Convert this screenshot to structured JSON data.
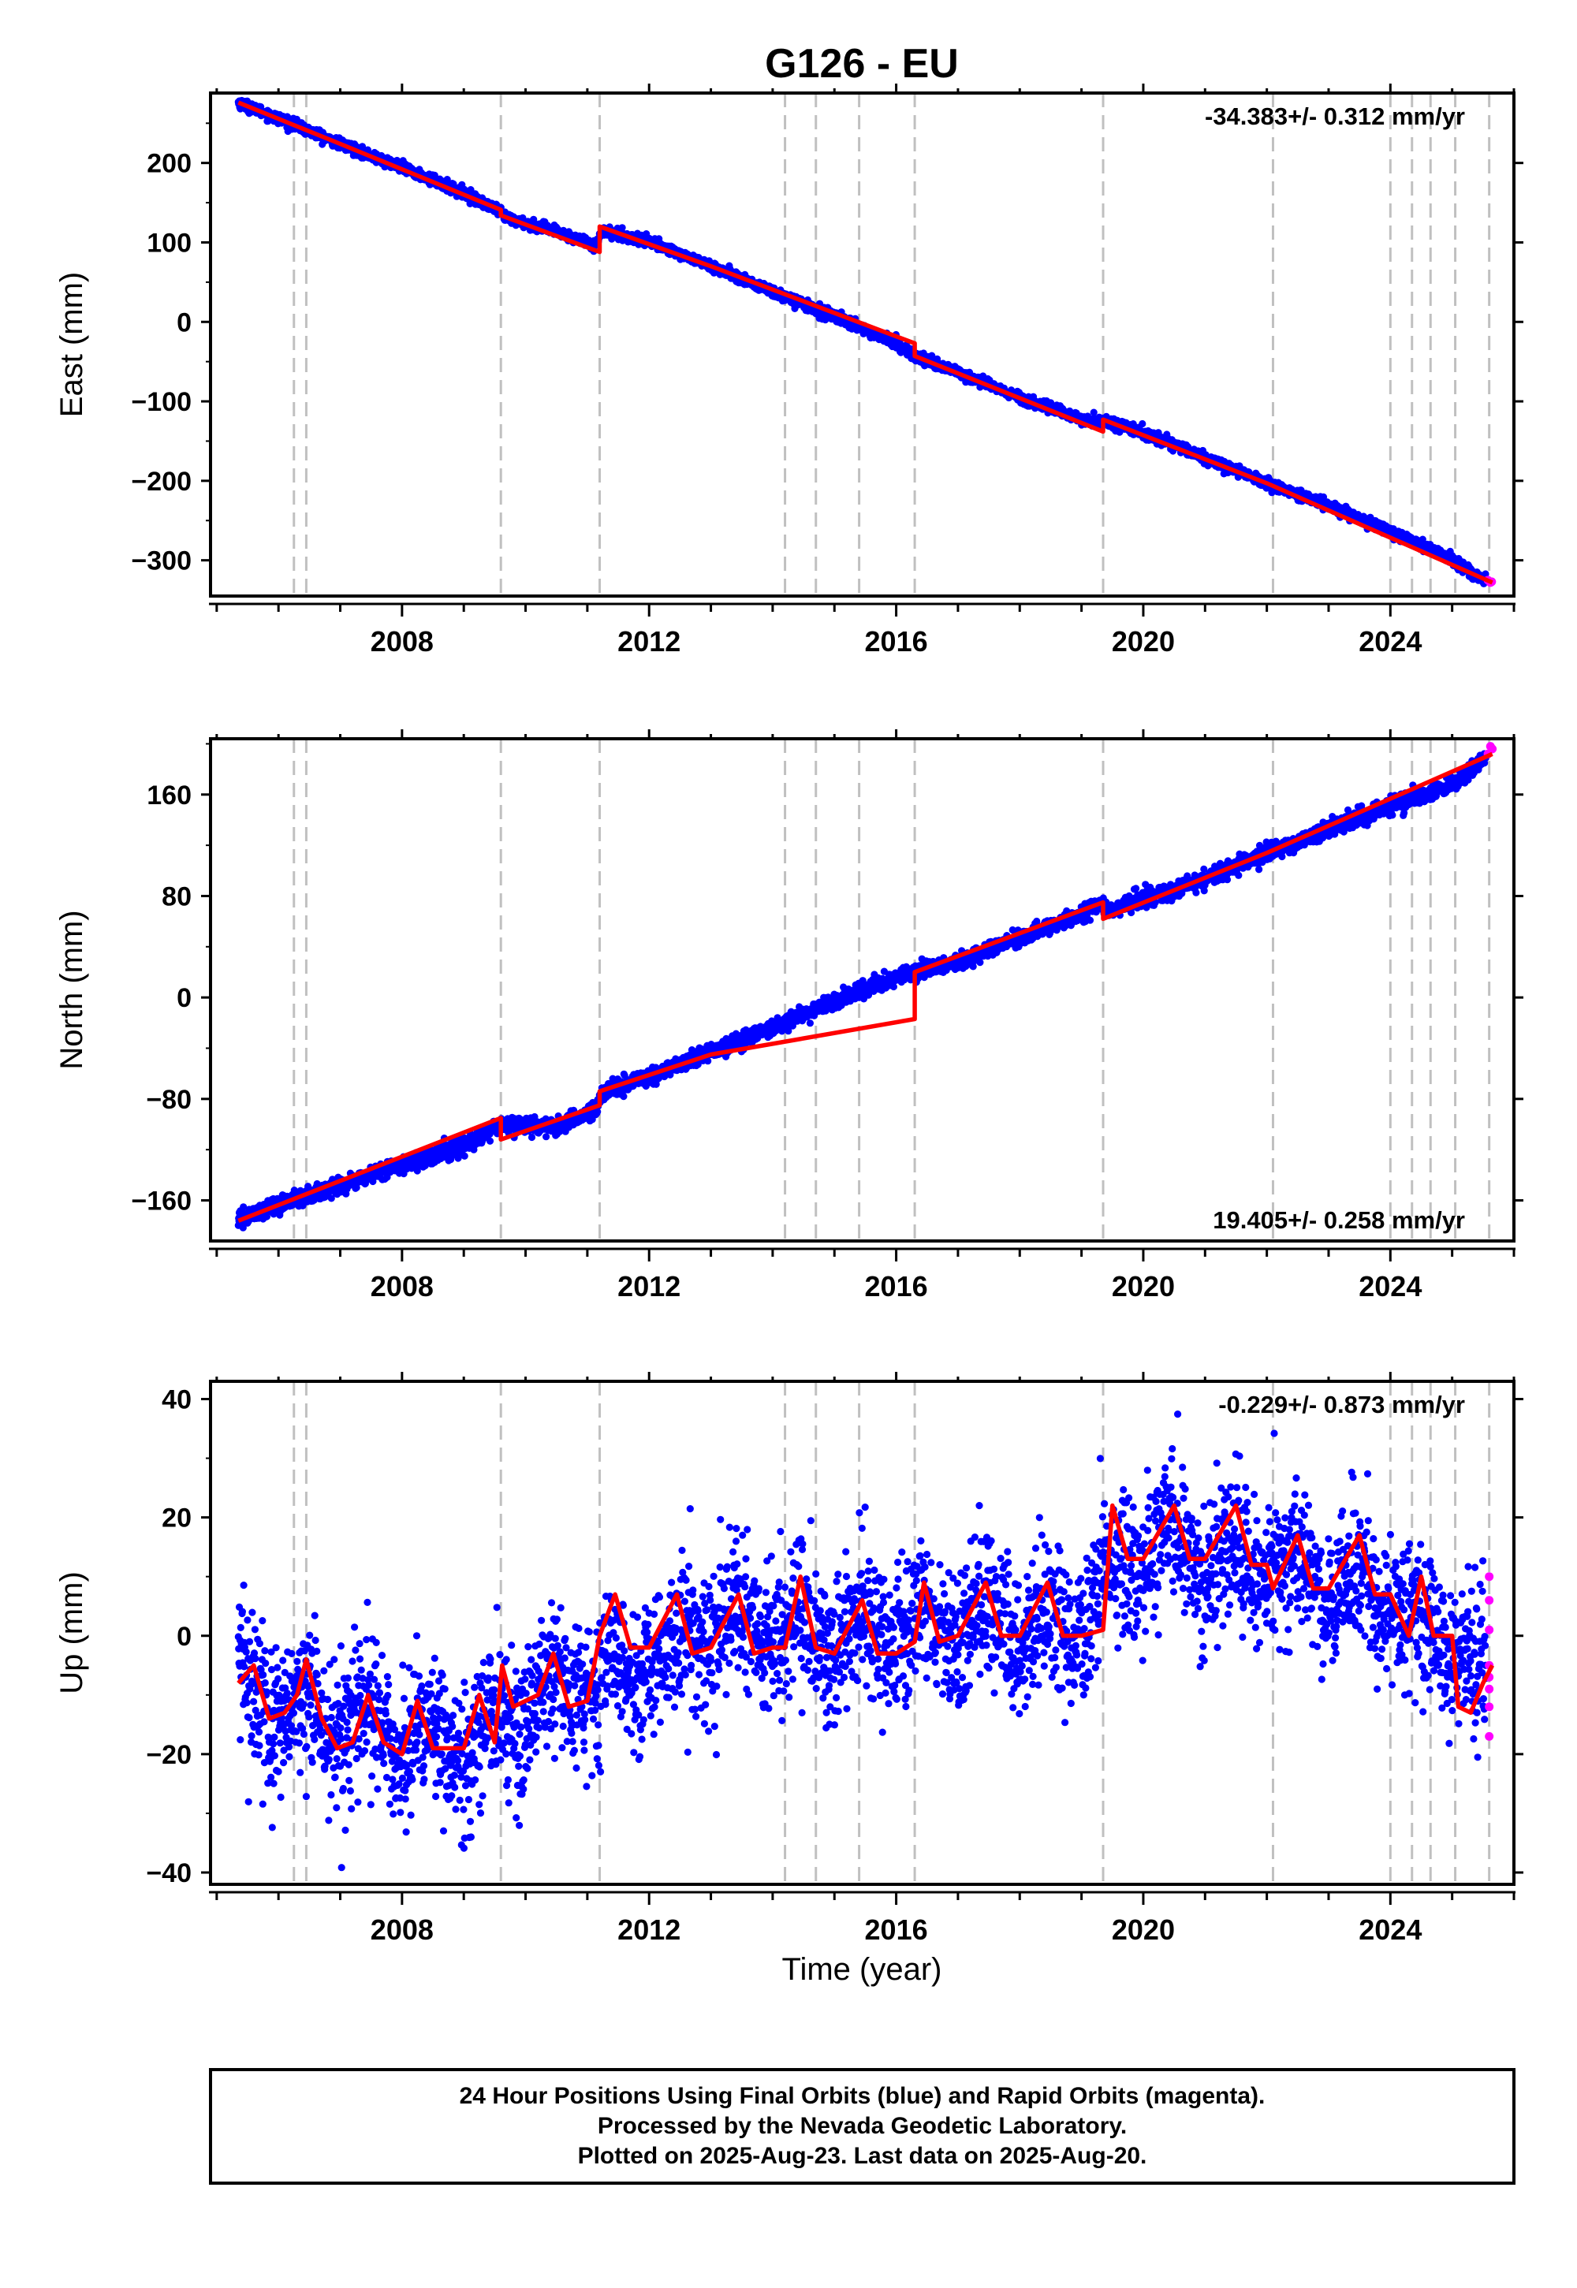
{
  "title": "G126 - EU",
  "xlabel": "Time (year)",
  "caption": {
    "line1": "24 Hour Positions Using Final Orbits (blue) and Rapid Orbits (magenta).",
    "line2": "Processed by the Nevada Geodetic Laboratory.",
    "line3": "Plotted on 2025-Aug-23. Last data on 2025-Aug-20."
  },
  "colors": {
    "final_orbits": "#0000ff",
    "rapid_orbits": "#ff00ff",
    "model": "#ff0000",
    "event_lines": "#c0c0c0"
  },
  "chart_data": [
    {
      "type": "scatter",
      "component": "east",
      "ylabel": "East (mm)",
      "rate_label": "-34.383+/- 0.312 mm/yr",
      "rate_label_position": "top-right",
      "xlim": [
        2004.9,
        2026.0
      ],
      "ylim": [
        -345,
        288
      ],
      "xticks": [
        2008,
        2012,
        2016,
        2020,
        2024
      ],
      "yticks": [
        -300,
        -200,
        -100,
        0,
        100,
        200
      ],
      "event_lines": [
        2006.25,
        2006.45,
        2009.6,
        2011.2,
        2014.2,
        2014.7,
        2015.4,
        2016.3,
        2019.35,
        2022.1,
        2024.0,
        2024.35,
        2024.65,
        2025.05,
        2025.6
      ],
      "series": [
        {
          "name": "Final Orbits",
          "x": [
            2005.35,
            2006.0,
            2007.0,
            2008.0,
            2009.0,
            2009.55,
            2009.65,
            2010.5,
            2011.15,
            2011.25,
            2012.0,
            2013.0,
            2014.0,
            2015.0,
            2016.0,
            2016.3,
            2017.0,
            2018.0,
            2019.0,
            2019.35,
            2019.4,
            2020.0,
            2021.0,
            2022.0,
            2023.0,
            2024.0,
            2025.0,
            2025.55
          ],
          "y": [
            276,
            256,
            224,
            194,
            162,
            140,
            132,
            113,
            97,
            115,
            101,
            70,
            38,
            7,
            -27,
            -43,
            -63,
            -95,
            -122,
            -128,
            -126,
            -139,
            -171,
            -203,
            -231,
            -263,
            -299,
            -327
          ]
        },
        {
          "name": "Rapid Orbits",
          "x": [
            2025.58,
            2025.62,
            2025.64
          ],
          "y": [
            -325,
            -328,
            -327
          ]
        },
        {
          "name": "Model",
          "x": [
            2005.35,
            2007.0,
            2009.6,
            2009.6,
            2011.2,
            2011.2,
            2013.0,
            2016.3,
            2016.3,
            2019.35,
            2019.35,
            2022.0,
            2025.65
          ],
          "y": [
            276,
            224,
            141,
            134,
            88,
            120,
            70,
            -27,
            -43,
            -138,
            -123,
            -203,
            -328
          ]
        }
      ]
    },
    {
      "type": "scatter",
      "component": "north",
      "ylabel": "North (mm)",
      "rate_label": "19.405+/- 0.258 mm/yr",
      "rate_label_position": "bottom-right",
      "xlim": [
        2004.9,
        2026.0
      ],
      "ylim": [
        -192,
        204
      ],
      "xticks": [
        2008,
        2012,
        2016,
        2020,
        2024
      ],
      "yticks": [
        -160,
        -80,
        0,
        80,
        160
      ],
      "event_lines": [
        2006.25,
        2006.45,
        2009.6,
        2011.2,
        2014.2,
        2014.7,
        2015.4,
        2016.3,
        2019.35,
        2022.1,
        2024.0,
        2024.35,
        2024.65,
        2025.05,
        2025.6
      ],
      "series": [
        {
          "name": "Final Orbits",
          "x": [
            2005.35,
            2006.0,
            2007.0,
            2008.0,
            2009.0,
            2009.55,
            2009.65,
            2010.5,
            2011.15,
            2011.25,
            2012.0,
            2013.0,
            2014.0,
            2015.0,
            2016.0,
            2016.3,
            2017.0,
            2018.0,
            2019.0,
            2019.35,
            2019.4,
            2020.0,
            2021.0,
            2022.0,
            2023.0,
            2024.0,
            2025.0,
            2025.55
          ],
          "y": [
            -176,
            -163,
            -149,
            -131,
            -117,
            -101,
            -101,
            -102,
            -88,
            -75,
            -63,
            -43,
            -24,
            -3,
            16,
            20,
            28,
            47,
            66,
            74,
            68,
            77,
            93,
            114,
            133,
            151,
            168,
            190
          ]
        },
        {
          "name": "Rapid Orbits",
          "x": [
            2025.58,
            2025.62,
            2025.65
          ],
          "y": [
            192,
            198,
            196
          ]
        },
        {
          "name": "Model",
          "x": [
            2005.35,
            2009.6,
            2009.6,
            2011.2,
            2011.2,
            2013.0,
            2016.3,
            2016.3,
            2019.35,
            2019.35,
            2022.0,
            2025.65
          ],
          "y": [
            -176,
            -95,
            -112,
            -85,
            -74,
            -45,
            -17,
            20,
            75,
            62,
            114,
            192
          ]
        }
      ]
    },
    {
      "type": "scatter",
      "component": "up",
      "ylabel": "Up (mm)",
      "rate_label": "-0.229+/- 0.873 mm/yr",
      "rate_label_position": "top-right",
      "xlim": [
        2004.9,
        2026.0
      ],
      "ylim": [
        -42,
        43
      ],
      "xticks": [
        2008,
        2012,
        2016,
        2020,
        2024
      ],
      "yticks": [
        -40,
        -20,
        0,
        20,
        40
      ],
      "event_lines": [
        2006.25,
        2006.45,
        2009.6,
        2011.2,
        2014.2,
        2014.7,
        2015.4,
        2016.3,
        2019.35,
        2022.1,
        2024.0,
        2024.35,
        2024.65,
        2025.05,
        2025.6
      ],
      "series": [
        {
          "name": "Final Orbits",
          "x": [
            2005.35,
            2006.0,
            2007.0,
            2008.0,
            2009.0,
            2010.0,
            2011.0,
            2012.0,
            2013.0,
            2014.0,
            2015.0,
            2016.0,
            2017.0,
            2018.0,
            2019.0,
            2020.0,
            2021.0,
            2022.0,
            2023.0,
            2024.0,
            2025.0,
            2025.55
          ],
          "y": [
            -8,
            -13,
            -15,
            -17,
            -19,
            -11,
            -9,
            -4,
            1,
            2,
            0,
            1,
            2,
            2,
            3,
            16,
            14,
            12,
            10,
            5,
            -2,
            -8
          ]
        },
        {
          "name": "Rapid Orbits",
          "x": [
            2025.6,
            2025.6,
            2025.6,
            2025.6,
            2025.6,
            2025.6,
            2025.6,
            2025.6
          ],
          "y": [
            10,
            6,
            1,
            -5,
            -7,
            -9,
            -12,
            -17
          ]
        },
        {
          "name": "Model",
          "x": [
            2005.35,
            2005.6,
            2005.85,
            2006.1,
            2006.3,
            2006.45,
            2006.7,
            2006.95,
            2007.2,
            2007.45,
            2007.7,
            2008.0,
            2008.25,
            2008.5,
            2008.7,
            2009.0,
            2009.25,
            2009.5,
            2009.62,
            2009.8,
            2010.2,
            2010.45,
            2010.7,
            2011.0,
            2011.2,
            2011.45,
            2011.7,
            2012.0,
            2012.45,
            2012.7,
            2013.0,
            2013.45,
            2013.7,
            2014.0,
            2014.2,
            2014.45,
            2014.7,
            2015.0,
            2015.45,
            2015.7,
            2016.0,
            2016.3,
            2016.45,
            2016.7,
            2017.0,
            2017.45,
            2017.7,
            2018.0,
            2018.45,
            2018.7,
            2019.0,
            2019.35,
            2019.5,
            2019.75,
            2020.0,
            2020.5,
            2020.75,
            2021.0,
            2021.5,
            2021.75,
            2022.0,
            2022.1,
            2022.5,
            2022.75,
            2023.0,
            2023.5,
            2023.75,
            2024.0,
            2024.3,
            2024.5,
            2024.7,
            2025.0,
            2025.1,
            2025.3,
            2025.5,
            2025.65
          ],
          "y": [
            -8,
            -5,
            -14,
            -13,
            -10,
            -4,
            -14,
            -19,
            -18,
            -10,
            -18,
            -20,
            -11,
            -19,
            -19,
            -19,
            -10,
            -18,
            -5,
            -12,
            -10,
            -3,
            -12,
            -11,
            0,
            7,
            -2,
            -2,
            7,
            -3,
            -2,
            7,
            -3,
            -2,
            -2,
            10,
            -2,
            -3,
            6,
            -3,
            -3,
            -1,
            9,
            -1,
            0,
            9,
            0,
            0,
            9,
            0,
            0,
            1,
            22,
            13,
            13,
            22,
            13,
            13,
            22,
            12,
            12,
            8,
            17,
            8,
            8,
            17,
            7,
            7,
            0,
            10,
            0,
            0,
            -12,
            -13,
            -8,
            -5
          ]
        }
      ]
    }
  ]
}
